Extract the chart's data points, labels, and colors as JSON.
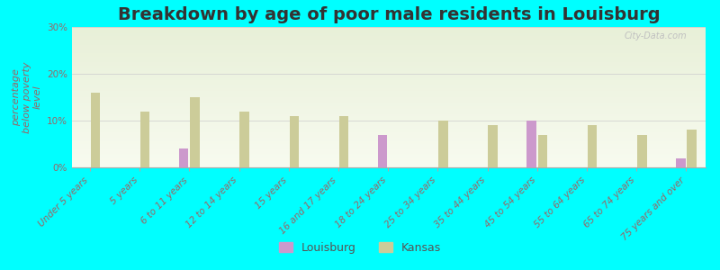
{
  "title": "Breakdown by age of poor male residents in Louisburg",
  "ylabel": "percentage\nbelow poverty\nlevel",
  "categories": [
    "Under 5 years",
    "5 years",
    "6 to 11 years",
    "12 to 14 years",
    "15 years",
    "16 and 17 years",
    "18 to 24 years",
    "25 to 34 years",
    "35 to 44 years",
    "45 to 54 years",
    "55 to 64 years",
    "65 to 74 years",
    "75 years and over"
  ],
  "louisburg_values": [
    0,
    0,
    4,
    0,
    0,
    0,
    7,
    0,
    0,
    10,
    0,
    0,
    2
  ],
  "kansas_values": [
    16,
    12,
    15,
    12,
    11,
    11,
    0,
    10,
    9,
    7,
    9,
    7,
    8
  ],
  "louisburg_color": "#cc99cc",
  "kansas_color": "#cccc99",
  "background_color": "#00ffff",
  "plot_bg_top": "#e8f0d8",
  "plot_bg_bottom": "#f8fbf0",
  "ylim": [
    0,
    30
  ],
  "yticks": [
    0,
    10,
    20,
    30
  ],
  "ytick_labels": [
    "0%",
    "10%",
    "20%",
    "30%"
  ],
  "bar_width": 0.38,
  "title_fontsize": 14,
  "axis_label_fontsize": 8,
  "tick_fontsize": 7.5,
  "legend_fontsize": 9
}
